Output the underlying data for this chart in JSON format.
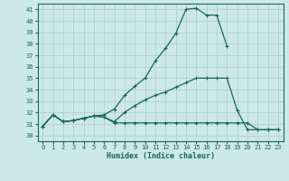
{
  "xlabel": "Humidex (Indice chaleur)",
  "xlim": [
    -0.5,
    23.5
  ],
  "ylim": [
    29.5,
    41.5
  ],
  "xticks": [
    0,
    1,
    2,
    3,
    4,
    5,
    6,
    7,
    8,
    9,
    10,
    11,
    12,
    13,
    14,
    15,
    16,
    17,
    18,
    19,
    20,
    21,
    22,
    23
  ],
  "yticks": [
    30,
    31,
    32,
    33,
    34,
    35,
    36,
    37,
    38,
    39,
    40,
    41
  ],
  "background_color": "#cce8e8",
  "line_color": "#1a6660",
  "grid_color": "#aacece",
  "lines": [
    {
      "x": [
        0,
        1,
        2,
        3,
        4,
        5,
        6,
        7,
        8,
        9,
        10,
        11,
        12,
        13,
        14,
        15,
        16,
        17,
        18
      ],
      "y": [
        30.8,
        31.8,
        31.2,
        31.3,
        31.5,
        31.7,
        31.8,
        32.3,
        33.5,
        34.3,
        35.0,
        36.5,
        37.6,
        38.9,
        41.0,
        41.1,
        40.5,
        40.5,
        37.8
      ]
    },
    {
      "x": [
        0,
        1,
        2,
        3,
        4,
        5,
        6,
        7,
        8,
        9,
        10,
        11,
        12,
        13,
        14,
        15,
        16,
        17,
        18,
        19,
        20,
        21,
        22,
        23
      ],
      "y": [
        30.8,
        31.8,
        31.2,
        31.3,
        31.5,
        31.7,
        31.6,
        31.2,
        32.0,
        32.6,
        33.1,
        33.5,
        33.8,
        34.2,
        34.6,
        35.0,
        35.0,
        35.0,
        35.0,
        32.2,
        30.5,
        30.5,
        30.5,
        30.5
      ]
    },
    {
      "x": [
        0,
        1,
        2,
        3,
        4,
        5,
        6,
        7,
        8,
        9,
        10,
        11,
        12,
        13,
        14,
        15,
        16,
        17,
        18,
        19,
        20,
        21,
        22,
        23
      ],
      "y": [
        30.8,
        31.8,
        31.2,
        31.3,
        31.5,
        31.7,
        31.6,
        31.1,
        31.1,
        31.1,
        31.1,
        31.1,
        31.1,
        31.1,
        31.1,
        31.1,
        31.1,
        31.1,
        31.1,
        31.1,
        31.1,
        30.5,
        30.5,
        30.5
      ]
    }
  ],
  "figsize": [
    3.2,
    2.0
  ],
  "dpi": 100
}
